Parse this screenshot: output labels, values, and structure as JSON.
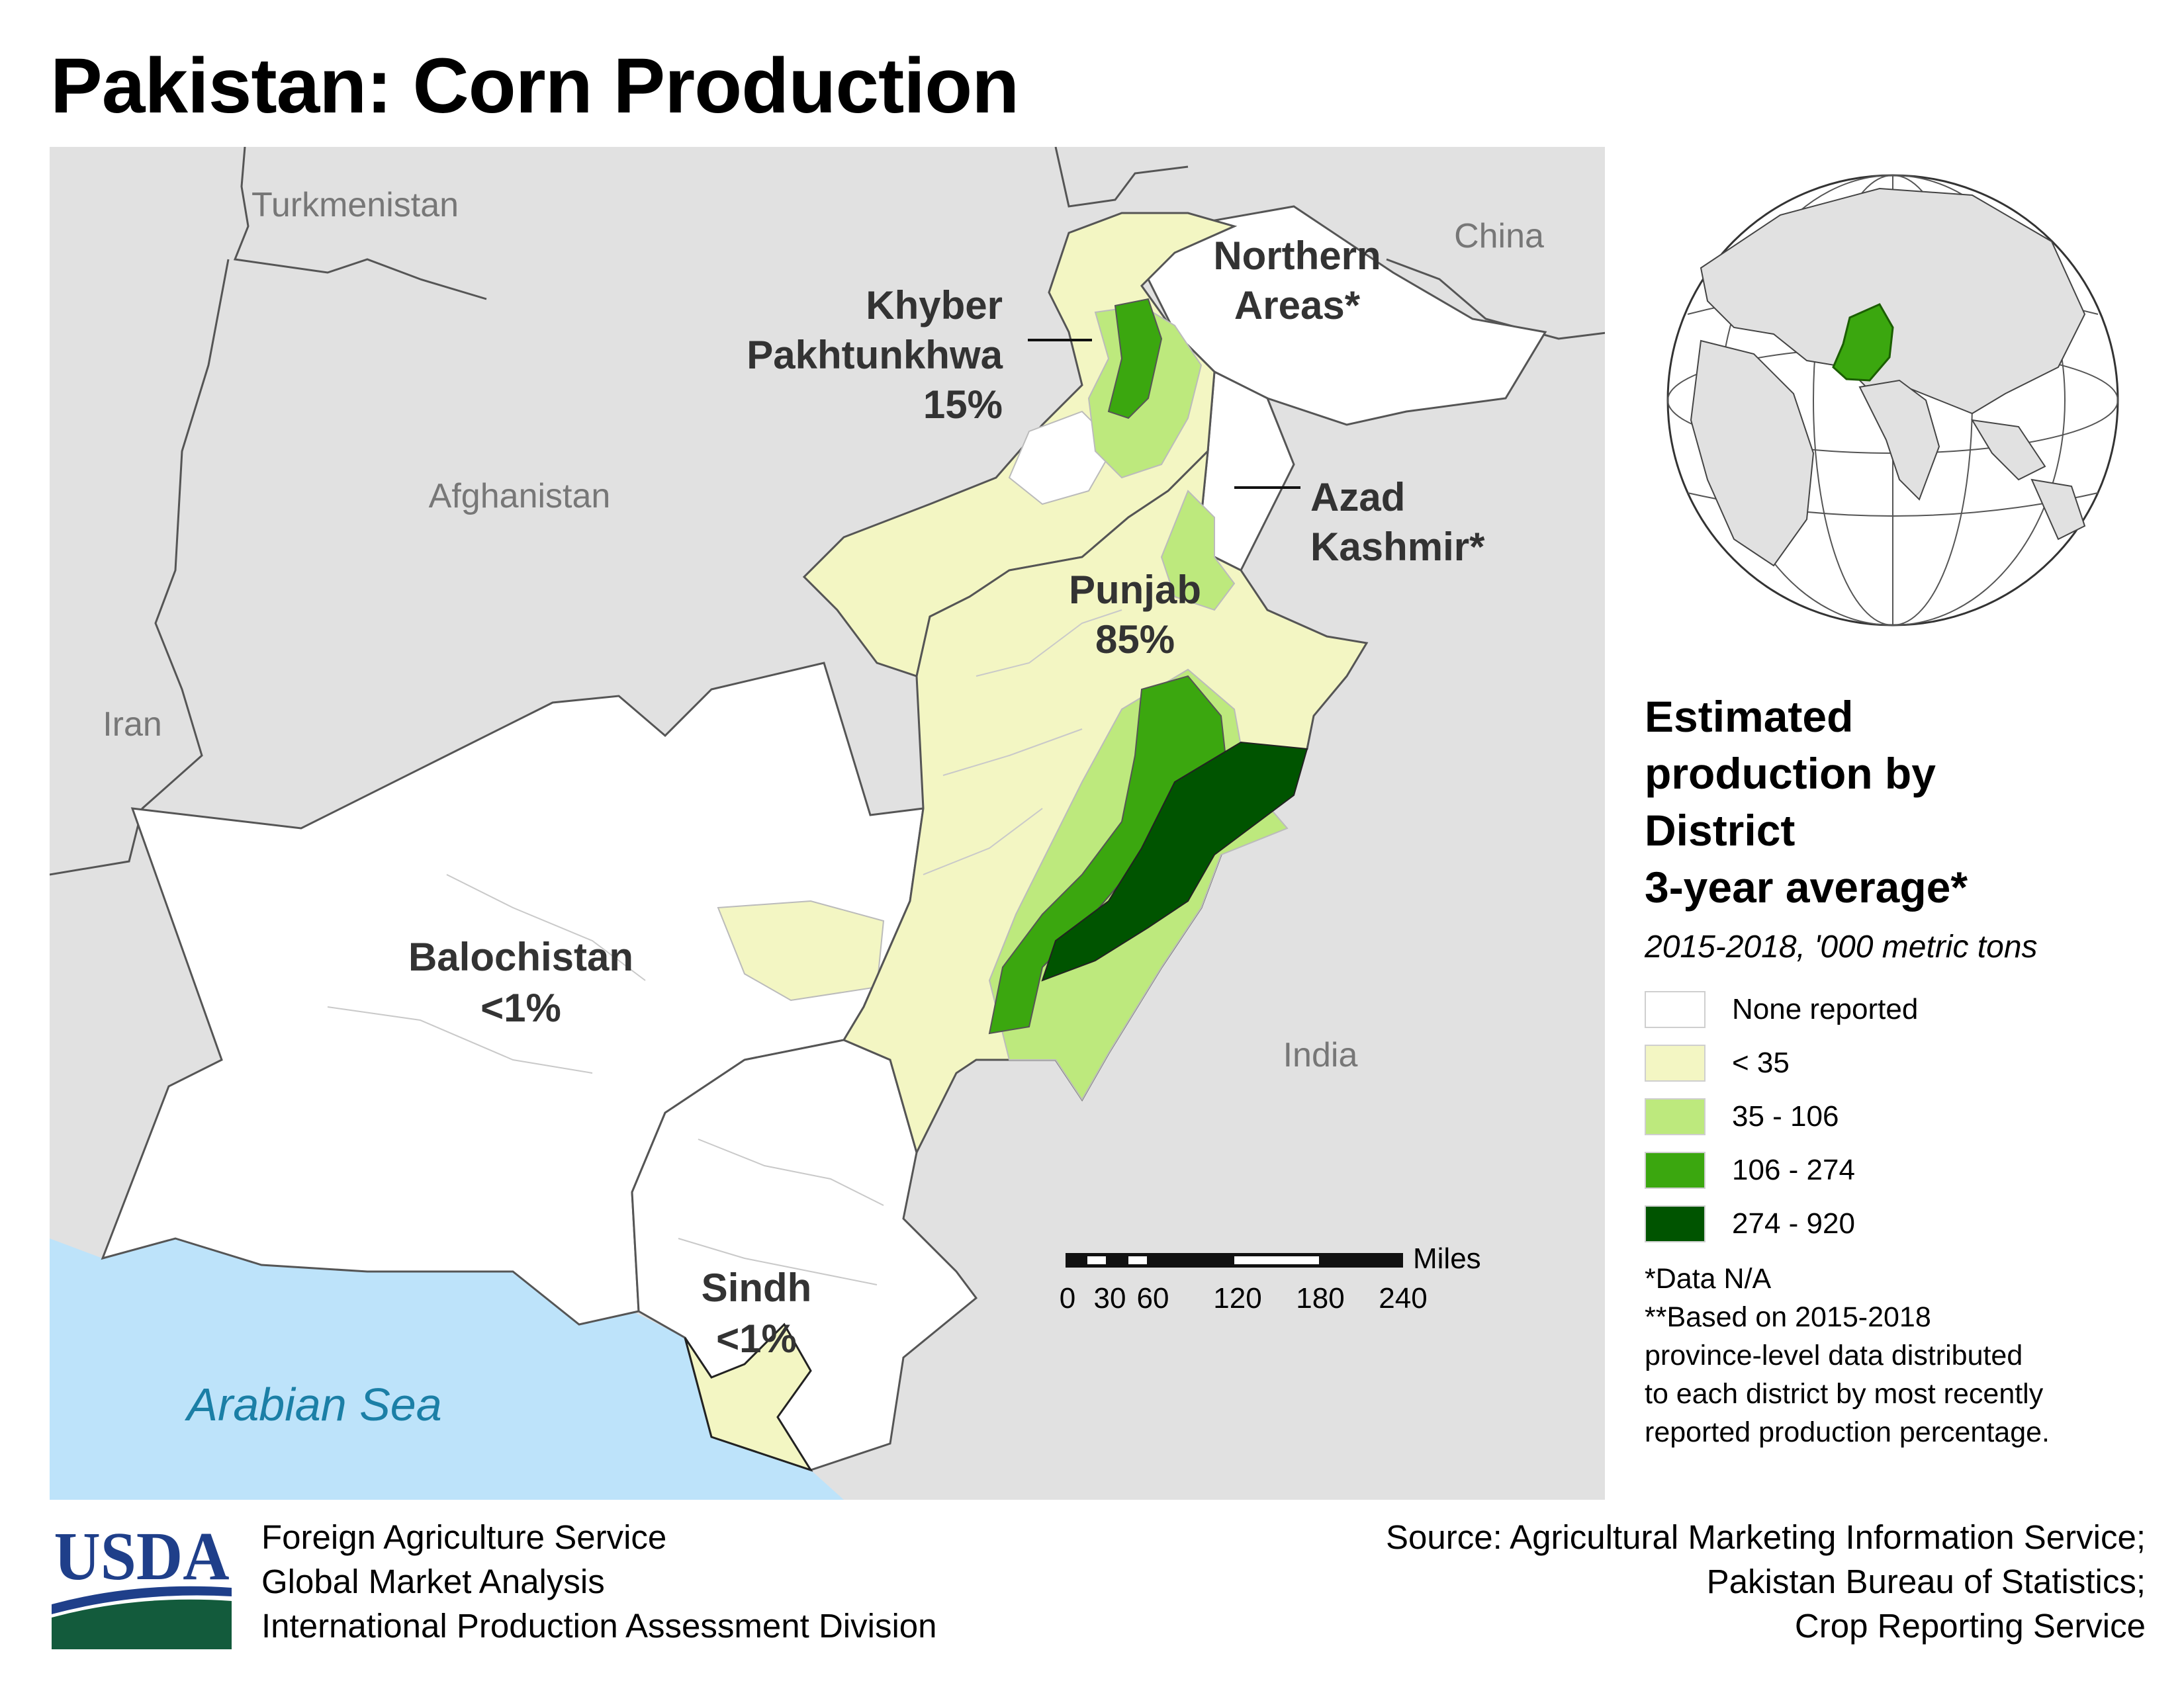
{
  "title": "Pakistan: Corn Production",
  "map": {
    "countries": [
      {
        "name": "Turkmenistan"
      },
      {
        "name": "Afghanistan"
      },
      {
        "name": "Iran"
      },
      {
        "name": "China"
      },
      {
        "name": "India"
      }
    ],
    "water_label": "Arabian Sea",
    "provinces": [
      {
        "name_line1": "Khyber",
        "name_line2": "Pakhtunkhwa",
        "share": "15%"
      },
      {
        "name_line1": "Punjab",
        "share": "85%"
      },
      {
        "name_line1": "Balochistan",
        "share": "<1%"
      },
      {
        "name_line1": "Sindh",
        "share": "<1%"
      },
      {
        "name_line1": "Northern",
        "name_line2": "Areas*"
      },
      {
        "name_line1": "Azad",
        "name_line2": "Kashmir*"
      }
    ],
    "scale_bar": {
      "unit": "Miles",
      "ticks": [
        "0",
        "30",
        "60",
        "120",
        "180",
        "240"
      ]
    },
    "colors": {
      "land_other": "#e1e1e1",
      "water": "#bde3fa",
      "no_data": "#ffffff",
      "class1": "#f3f6c3",
      "class2": "#bde97d",
      "class3": "#3ba70f",
      "class4": "#005400"
    }
  },
  "legend": {
    "title_lines": [
      "Estimated",
      "production by",
      "District",
      "3-year average*"
    ],
    "subtitle": "2015-2018, '000 metric tons",
    "items": [
      {
        "label": "None reported",
        "color": "#ffffff"
      },
      {
        "label": "< 35",
        "color": "#f3f6c3"
      },
      {
        "label": "35 - 106",
        "color": "#bde97d"
      },
      {
        "label": "106 - 274",
        "color": "#3ba70f"
      },
      {
        "label": "274 - 920",
        "color": "#005400"
      }
    ],
    "notes": [
      "*Data N/A",
      "**Based on 2015-2018",
      "province-level data distributed",
      "to each district by most recently",
      "reported production percentage."
    ]
  },
  "footer": {
    "logo_text": "USDA",
    "credits": [
      "Foreign Agriculture Service",
      "Global Market Analysis",
      "International Production Assessment Division"
    ],
    "source": [
      "Source: Agricultural Marketing Information Service;",
      "Pakistan Bureau of Statistics;",
      "Crop Reporting Service"
    ]
  }
}
